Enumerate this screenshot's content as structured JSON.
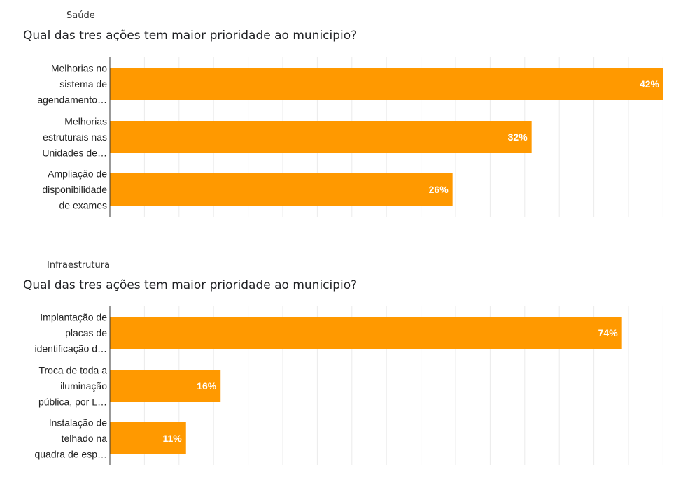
{
  "colors": {
    "bar": "#FF9900",
    "grid": "#EBEBEB",
    "axis": "#333333",
    "label_text": "#222222",
    "data_label": "#FFFFFF"
  },
  "panels": [
    {
      "category": "Saúde",
      "question": "Qual das tres ações tem maior prioridade ao municipio?"
    },
    {
      "category": "Infraestrutura",
      "question": "Qual das tres ações tem maior prioridade ao municipio?"
    }
  ],
  "chart_data": [
    {
      "type": "bar",
      "orientation": "horizontal",
      "title": "Qual das tres ações tem maior prioridade ao municipio?",
      "categories": [
        [
          "Melhorias no",
          "sistema de",
          "agendamento…"
        ],
        [
          "Melhorias",
          "estruturais nas",
          "Unidades de…"
        ],
        [
          "Ampliação de",
          "disponibilidade",
          "de exames"
        ]
      ],
      "values": [
        42,
        32,
        26
      ],
      "value_labels": [
        "42%",
        "32%",
        "26%"
      ],
      "xlim": [
        0,
        42
      ],
      "grid": true
    },
    {
      "type": "bar",
      "orientation": "horizontal",
      "title": "Qual das tres ações tem maior prioridade ao municipio?",
      "categories": [
        [
          "Implantação de",
          "placas de",
          "identificação d…"
        ],
        [
          "Troca de toda a",
          "iluminação",
          "pública, por L…"
        ],
        [
          "Instalação de",
          "telhado na",
          "quadra de esp…"
        ]
      ],
      "values": [
        74,
        16,
        11
      ],
      "value_labels": [
        "74%",
        "16%",
        "11%"
      ],
      "xlim": [
        0,
        80
      ],
      "grid": true
    }
  ]
}
